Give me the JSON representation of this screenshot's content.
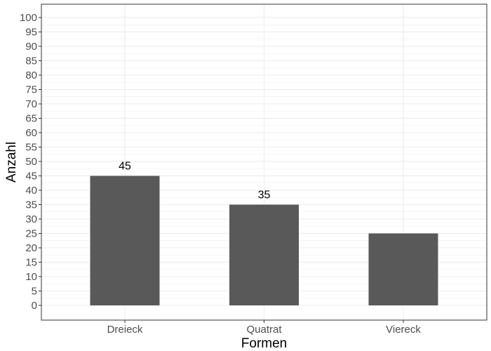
{
  "chart_data": {
    "type": "bar",
    "categories": [
      "Dreieck",
      "Quatrat",
      "Viereck"
    ],
    "values": [
      45,
      35,
      25
    ],
    "data_labels": [
      "45",
      "35",
      ""
    ],
    "xlabel": "Formen",
    "ylabel": "Anzahl",
    "ylim": [
      0,
      100
    ],
    "yticks": [
      0,
      5,
      10,
      15,
      20,
      25,
      30,
      35,
      40,
      45,
      50,
      55,
      60,
      65,
      70,
      75,
      80,
      85,
      90,
      95,
      100
    ],
    "grid": true,
    "bar_color": "#595959",
    "grid_color": "#ebebeb",
    "panel_border_color": "#333333"
  }
}
